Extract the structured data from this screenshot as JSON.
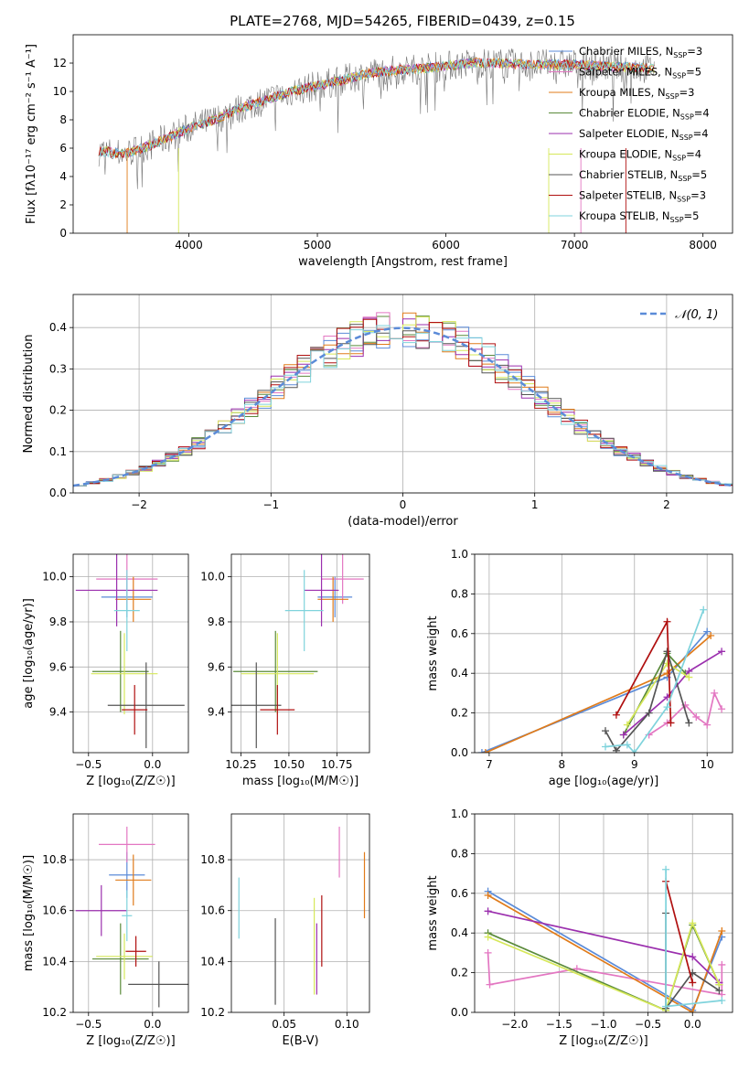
{
  "title": "PLATE=2768, MJD=54265, FIBERID=0439, z=0.15",
  "legend_entries": [
    {
      "label": "Chabrier MILES, N",
      "sub": "SSP",
      "suffix": "=3",
      "color": "#5b8bd8"
    },
    {
      "label": "Salpeter MILES, N",
      "sub": "SSP",
      "suffix": "=5",
      "color": "#e377c2"
    },
    {
      "label": "Kroupa MILES, N",
      "sub": "SSP",
      "suffix": "=3",
      "color": "#e07b1a"
    },
    {
      "label": "Chabrier ELODIE, N",
      "sub": "SSP",
      "suffix": "=4",
      "color": "#5a8a3a"
    },
    {
      "label": "Salpeter ELODIE, N",
      "sub": "SSP",
      "suffix": "=4",
      "color": "#9b2fae"
    },
    {
      "label": "Kroupa ELODIE, N",
      "sub": "SSP",
      "suffix": "=4",
      "color": "#d6e85a"
    },
    {
      "label": "Chabrier STELIB, N",
      "sub": "SSP",
      "suffix": "=5",
      "color": "#555555"
    },
    {
      "label": "Salpeter STELIB, N",
      "sub": "SSP",
      "suffix": "=3",
      "color": "#b01010"
    },
    {
      "label": "Kroupa STELIB, N",
      "sub": "SSP",
      "suffix": "=5",
      "color": "#7fd3dc"
    }
  ],
  "chart_data": [
    {
      "id": "spectrum",
      "type": "line",
      "xlabel": "wavelength [Angstrom, rest frame]",
      "ylabel": "Flux [fλ10⁻¹⁷ erg cm⁻² s⁻¹ A⁻¹]",
      "xlim": [
        3100,
        8230
      ],
      "ylim": [
        0,
        14
      ],
      "xticks": [
        4000,
        5000,
        6000,
        7000,
        8000
      ],
      "yticks": [
        0,
        2,
        4,
        6,
        8,
        10,
        12
      ],
      "grid": false,
      "legend_position": "top-right",
      "data_profile": {
        "x": [
          3300,
          3500,
          3700,
          3900,
          4000,
          4200,
          4400,
          4600,
          4800,
          5000,
          5200,
          5400,
          5600,
          5800,
          6000,
          6200,
          6400,
          6600,
          6800,
          7000,
          7200,
          7400,
          7600
        ],
        "y": [
          5.8,
          5.6,
          6.2,
          7.0,
          7.4,
          8.0,
          8.8,
          9.4,
          10.0,
          10.4,
          10.8,
          11.3,
          11.5,
          11.6,
          11.8,
          12.0,
          12.0,
          11.9,
          11.9,
          11.9,
          11.8,
          11.7,
          11.6
        ]
      }
    },
    {
      "id": "residuals",
      "type": "histogram",
      "xlabel": "(data-model)/error",
      "ylabel": "Normed distribution",
      "xlim": [
        -2.5,
        2.5
      ],
      "ylim": [
        0,
        0.48
      ],
      "xticks": [
        -2,
        -1,
        0,
        1,
        2
      ],
      "yticks": [
        0.0,
        0.1,
        0.2,
        0.3,
        0.4
      ],
      "grid": true,
      "legend_position": "top-right",
      "reference_curve": {
        "name": "𝒩(0, 1)",
        "color": "#5b8bd8",
        "style": "dashed"
      },
      "bin_width": 0.1
    },
    {
      "id": "age_vs_Z",
      "type": "scatter",
      "xlabel": "Z [log₁₀(Z/Z☉)]",
      "ylabel": "age  [log₁₀(age/yr)]",
      "xlim": [
        -0.62,
        0.28
      ],
      "ylim": [
        9.22,
        10.1
      ],
      "xticks": [
        -0.5,
        0.0
      ],
      "yticks": [
        9.4,
        9.6,
        9.8,
        10.0
      ],
      "grid": true,
      "points": [
        {
          "x": -0.2,
          "y": 9.91,
          "xerr": 0.2,
          "yerr": 0.09
        },
        {
          "x": -0.2,
          "y": 9.99,
          "xerr": 0.24,
          "yerr": 0.11
        },
        {
          "x": -0.15,
          "y": 9.9,
          "xerr": 0.14,
          "yerr": 0.1
        },
        {
          "x": -0.25,
          "y": 9.58,
          "xerr": 0.22,
          "yerr": 0.18
        },
        {
          "x": -0.28,
          "y": 9.94,
          "xerr": 0.32,
          "yerr": 0.16
        },
        {
          "x": -0.22,
          "y": 9.57,
          "xerr": 0.26,
          "yerr": 0.18
        },
        {
          "x": -0.05,
          "y": 9.43,
          "xerr": 0.3,
          "yerr": 0.19
        },
        {
          "x": -0.14,
          "y": 9.41,
          "xerr": 0.1,
          "yerr": 0.11
        },
        {
          "x": -0.2,
          "y": 9.85,
          "xerr": 0.1,
          "yerr": 0.18
        }
      ]
    },
    {
      "id": "age_vs_mass",
      "type": "scatter",
      "xlabel": "mass [log₁₀(M/M☉)]",
      "ylabel": "",
      "xlim": [
        10.2,
        10.92
      ],
      "ylim": [
        9.22,
        10.1
      ],
      "xticks": [
        10.25,
        10.5,
        10.75
      ],
      "yticks": [
        9.4,
        9.6,
        9.8,
        10.0
      ],
      "grid": true,
      "points": [
        {
          "x": 10.74,
          "y": 9.91,
          "xerr": 0.09,
          "yerr": 0.09
        },
        {
          "x": 10.78,
          "y": 9.99,
          "xerr": 0.11,
          "yerr": 0.11
        },
        {
          "x": 10.73,
          "y": 9.9,
          "xerr": 0.08,
          "yerr": 0.1
        },
        {
          "x": 10.43,
          "y": 9.58,
          "xerr": 0.22,
          "yerr": 0.18
        },
        {
          "x": 10.67,
          "y": 9.94,
          "xerr": 0.09,
          "yerr": 0.16
        },
        {
          "x": 10.44,
          "y": 9.57,
          "xerr": 0.19,
          "yerr": 0.18
        },
        {
          "x": 10.33,
          "y": 9.43,
          "xerr": 0.13,
          "yerr": 0.19
        },
        {
          "x": 10.44,
          "y": 9.41,
          "xerr": 0.09,
          "yerr": 0.11
        },
        {
          "x": 10.58,
          "y": 9.85,
          "xerr": 0.1,
          "yerr": 0.18
        }
      ]
    },
    {
      "id": "weight_vs_age",
      "type": "line",
      "xlabel": "age  [log₁₀(age/yr)]",
      "ylabel": "mass weight",
      "xlim": [
        6.8,
        10.35
      ],
      "ylim": [
        0,
        1
      ],
      "xticks": [
        7,
        8,
        9,
        10
      ],
      "yticks": [
        0.0,
        0.2,
        0.4,
        0.6,
        0.8,
        1.0
      ],
      "grid": true,
      "series": [
        {
          "x": [
            6.9,
            9.45,
            10.0
          ],
          "y": [
            0.0,
            0.38,
            0.61
          ]
        },
        {
          "x": [
            9.2,
            9.45,
            9.7,
            9.85,
            10.0,
            10.1,
            10.2
          ],
          "y": [
            0.09,
            0.15,
            0.24,
            0.18,
            0.14,
            0.3,
            0.22
          ]
        },
        {
          "x": [
            6.95,
            9.45,
            10.05
          ],
          "y": [
            0.0,
            0.4,
            0.59
          ]
        },
        {
          "x": [
            8.85,
            9.45,
            9.7
          ],
          "y": [
            0.09,
            0.5,
            0.4
          ]
        },
        {
          "x": [
            8.85,
            9.45,
            9.75,
            10.2
          ],
          "y": [
            0.09,
            0.28,
            0.41,
            0.51
          ]
        },
        {
          "x": [
            8.9,
            9.45,
            9.75
          ],
          "y": [
            0.14,
            0.45,
            0.38
          ]
        },
        {
          "x": [
            8.6,
            8.75,
            9.2,
            9.45,
            9.75
          ],
          "y": [
            0.11,
            0.01,
            0.2,
            0.51,
            0.15
          ]
        },
        {
          "x": [
            8.75,
            9.45,
            9.5
          ],
          "y": [
            0.19,
            0.66,
            0.15
          ]
        },
        {
          "x": [
            8.6,
            8.9,
            9.0,
            9.45,
            9.95
          ],
          "y": [
            0.03,
            0.04,
            0.0,
            0.23,
            0.72
          ]
        }
      ]
    },
    {
      "id": "mass_vs_Z",
      "type": "scatter",
      "xlabel": "Z [log₁₀(Z/Z☉)]",
      "ylabel": "mass [log₁₀(M/M☉)]",
      "xlim": [
        -0.62,
        0.28
      ],
      "ylim": [
        10.2,
        10.98
      ],
      "xticks": [
        -0.5,
        0.0
      ],
      "yticks": [
        10.2,
        10.4,
        10.6,
        10.8
      ],
      "grid": true,
      "points": [
        {
          "x": -0.2,
          "y": 10.74,
          "xerr": 0.14,
          "yerr": 0.09
        },
        {
          "x": -0.2,
          "y": 10.86,
          "xerr": 0.22,
          "yerr": 0.07
        },
        {
          "x": -0.15,
          "y": 10.72,
          "xerr": 0.14,
          "yerr": 0.1
        },
        {
          "x": -0.25,
          "y": 10.41,
          "xerr": 0.22,
          "yerr": 0.14
        },
        {
          "x": -0.4,
          "y": 10.6,
          "xerr": 0.2,
          "yerr": 0.1
        },
        {
          "x": -0.22,
          "y": 10.42,
          "xerr": 0.22,
          "yerr": 0.09
        },
        {
          "x": 0.05,
          "y": 10.31,
          "xerr": 0.24,
          "yerr": 0.09
        },
        {
          "x": -0.13,
          "y": 10.44,
          "xerr": 0.08,
          "yerr": 0.06
        },
        {
          "x": -0.2,
          "y": 10.58,
          "xerr": 0.04,
          "yerr": 0.1
        }
      ]
    },
    {
      "id": "mass_vs_EBV",
      "type": "scatter",
      "xlabel": "E(B-V)",
      "ylabel": "",
      "xlim": [
        0.008,
        0.118
      ],
      "ylim": [
        10.2,
        10.98
      ],
      "xticks": [
        0.05,
        0.1
      ],
      "yticks": [
        10.2,
        10.4,
        10.6,
        10.8
      ],
      "grid": true,
      "points": [
        {
          "x": 0.094,
          "y": 10.83,
          "yerr": 0.1
        },
        {
          "x": 0.114,
          "y": 10.7,
          "yerr": 0.13
        },
        {
          "x": 0.08,
          "y": 10.52,
          "yerr": 0.14
        },
        {
          "x": 0.076,
          "y": 10.41,
          "yerr": 0.14
        },
        {
          "x": 0.074,
          "y": 10.46,
          "yerr": 0.19
        },
        {
          "x": 0.043,
          "y": 10.4,
          "yerr": 0.17
        },
        {
          "x": 0.014,
          "y": 10.61,
          "yerr": 0.12
        }
      ]
    },
    {
      "id": "weight_vs_Z",
      "type": "line",
      "xlabel": "Z [log₁₀(Z/Z☉)]",
      "ylabel": "mass weight",
      "xlim": [
        -2.45,
        0.45
      ],
      "ylim": [
        0,
        1
      ],
      "xticks": [
        -2.0,
        -1.5,
        -1.0,
        -0.5,
        0.0
      ],
      "yticks": [
        0.0,
        0.2,
        0.4,
        0.6,
        0.8,
        1.0
      ],
      "grid": true,
      "series": [
        {
          "x": [
            -2.3,
            0.0,
            0.33
          ],
          "y": [
            0.61,
            0.01,
            0.38
          ]
        },
        {
          "x": [
            -2.3,
            -2.28,
            -1.3,
            0.33,
            0.33
          ],
          "y": [
            0.3,
            0.14,
            0.22,
            0.09,
            0.24
          ]
        },
        {
          "x": [
            -2.3,
            0.0,
            0.33
          ],
          "y": [
            0.59,
            0.0,
            0.41
          ]
        },
        {
          "x": [
            -2.3,
            -0.3,
            0.0,
            0.3
          ],
          "y": [
            0.4,
            0.01,
            0.44,
            0.14
          ]
        },
        {
          "x": [
            -2.3,
            0.0,
            0.3
          ],
          "y": [
            0.51,
            0.28,
            0.15
          ]
        },
        {
          "x": [
            -2.3,
            -0.3,
            0.0,
            0.3
          ],
          "y": [
            0.38,
            0.01,
            0.45,
            0.14
          ]
        },
        {
          "x": [
            -0.3,
            -0.3,
            0.0,
            0.3
          ],
          "y": [
            0.5,
            0.02,
            0.2,
            0.11
          ]
        },
        {
          "x": [
            -0.3,
            0.0
          ],
          "y": [
            0.66,
            0.15
          ]
        },
        {
          "x": [
            -0.3,
            -0.3,
            0.33
          ],
          "y": [
            0.72,
            0.03,
            0.06
          ]
        }
      ]
    }
  ]
}
